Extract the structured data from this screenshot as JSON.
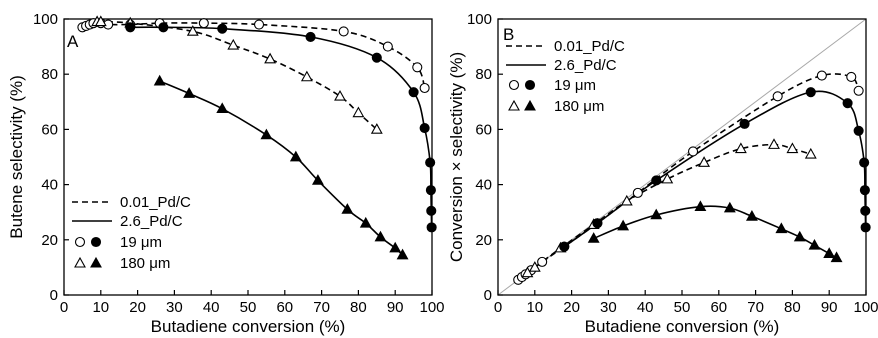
{
  "chart_data": [
    {
      "type": "line",
      "panel_label": "A",
      "xlabel": "Butadiene conversion (%)",
      "ylabel": "Butene selectivity (%)",
      "xlim": [
        0,
        100
      ],
      "ylim": [
        0,
        100
      ],
      "xticks": [
        0,
        10,
        20,
        30,
        40,
        50,
        60,
        70,
        80,
        90,
        100
      ],
      "yticks": [
        0,
        20,
        40,
        60,
        80,
        100
      ],
      "legend_position": "bottom-left",
      "legend": [
        {
          "label": "0.01_Pd/C",
          "style": "dashed-line"
        },
        {
          "label": "2.6_Pd/C",
          "style": "solid-line"
        },
        {
          "label": "19 μm",
          "markers": [
            "open-circle",
            "filled-circle"
          ]
        },
        {
          "label": "180 μm",
          "markers": [
            "open-triangle",
            "filled-triangle"
          ]
        }
      ],
      "series": [
        {
          "name": "0.01_Pd/C 19 μm",
          "marker": "open-circle",
          "line": "dashed",
          "points": [
            [
              5,
              97
            ],
            [
              6,
              97.5
            ],
            [
              7,
              98
            ],
            [
              8,
              98.5
            ],
            [
              10,
              98.5
            ],
            [
              12,
              98
            ],
            [
              18,
              98
            ],
            [
              26,
              98.5
            ],
            [
              38,
              98.5
            ],
            [
              53,
              98
            ],
            [
              76,
              95.5
            ],
            [
              88,
              90
            ],
            [
              96,
              82.5
            ],
            [
              98,
              75
            ]
          ]
        },
        {
          "name": "0.01_Pd/C 180 μm",
          "marker": "open-triangle",
          "line": "dashed",
          "points": [
            [
              9,
              99
            ],
            [
              10,
              99
            ],
            [
              18,
              98.5
            ],
            [
              35,
              95.5
            ],
            [
              46,
              90.5
            ],
            [
              56,
              85.5
            ],
            [
              66,
              79
            ],
            [
              75,
              72
            ],
            [
              80,
              66
            ],
            [
              85,
              60
            ]
          ]
        },
        {
          "name": "2.6_Pd/C 19 μm",
          "marker": "filled-circle",
          "line": "solid",
          "points": [
            [
              18,
              97
            ],
            [
              27,
              97
            ],
            [
              43,
              96.5
            ],
            [
              67,
              93.5
            ],
            [
              85,
              86
            ],
            [
              95,
              73.5
            ],
            [
              98,
              60.5
            ],
            [
              99.5,
              48
            ],
            [
              99.7,
              38
            ],
            [
              99.8,
              30.5
            ],
            [
              99.9,
              24.5
            ]
          ]
        },
        {
          "name": "2.6_Pd/C 180 μm",
          "marker": "filled-triangle",
          "line": "solid",
          "points": [
            [
              26,
              77.5
            ],
            [
              34,
              73
            ],
            [
              43,
              67.5
            ],
            [
              55,
              58
            ],
            [
              63,
              50
            ],
            [
              69,
              41.5
            ],
            [
              77,
              31
            ],
            [
              82,
              26
            ],
            [
              86,
              21
            ],
            [
              90,
              17
            ],
            [
              92,
              14.5
            ]
          ]
        }
      ]
    },
    {
      "type": "line",
      "panel_label": "B",
      "xlabel": "Butadiene conversion (%)",
      "ylabel": "Conversion × selectivity (%)",
      "xlim": [
        0,
        100
      ],
      "ylim": [
        0,
        100
      ],
      "xticks": [
        0,
        10,
        20,
        30,
        40,
        50,
        60,
        70,
        80,
        90,
        100
      ],
      "yticks": [
        0,
        20,
        40,
        60,
        80,
        100
      ],
      "diagonal": true,
      "legend_position": "top-left",
      "legend": [
        {
          "label": "0.01_Pd/C",
          "style": "dashed-line"
        },
        {
          "label": "2.6_Pd/C",
          "style": "solid-line"
        },
        {
          "label": "19 μm",
          "markers": [
            "open-circle",
            "filled-circle"
          ]
        },
        {
          "label": "180 μm",
          "markers": [
            "open-triangle",
            "filled-triangle"
          ]
        }
      ],
      "series": [
        {
          "name": "0.01_Pd/C 19 μm",
          "marker": "open-circle",
          "line": "dashed",
          "points": [
            [
              5.5,
              5.5
            ],
            [
              6.5,
              6.5
            ],
            [
              7.5,
              7.5
            ],
            [
              9,
              9
            ],
            [
              12,
              12
            ],
            [
              18,
              17.5
            ],
            [
              27,
              26
            ],
            [
              38,
              37
            ],
            [
              53,
              52
            ],
            [
              76,
              72
            ],
            [
              88,
              79.5
            ],
            [
              96,
              79
            ],
            [
              98,
              74
            ]
          ]
        },
        {
          "name": "0.01_Pd/C 180 μm",
          "marker": "open-triangle",
          "line": "dashed",
          "points": [
            [
              8,
              8
            ],
            [
              10,
              10
            ],
            [
              17,
              17
            ],
            [
              26,
              25.5
            ],
            [
              35,
              34
            ],
            [
              46,
              42
            ],
            [
              56,
              48
            ],
            [
              66,
              53
            ],
            [
              75,
              54.5
            ],
            [
              80,
              53
            ],
            [
              85,
              51
            ]
          ]
        },
        {
          "name": "2.6_Pd/C 19 μm",
          "marker": "filled-circle",
          "line": "solid",
          "points": [
            [
              18,
              17.5
            ],
            [
              27,
              26
            ],
            [
              43,
              41.5
            ],
            [
              67,
              62
            ],
            [
              85,
              73.5
            ],
            [
              95,
              69.5
            ],
            [
              98,
              59.5
            ],
            [
              99.5,
              48
            ],
            [
              99.7,
              38
            ],
            [
              99.8,
              30.5
            ],
            [
              99.9,
              24.5
            ]
          ]
        },
        {
          "name": "2.6_Pd/C 180 μm",
          "marker": "filled-triangle",
          "line": "solid",
          "points": [
            [
              26,
              20.5
            ],
            [
              34,
              25
            ],
            [
              43,
              29
            ],
            [
              55,
              32
            ],
            [
              63,
              31.5
            ],
            [
              69,
              28.5
            ],
            [
              77,
              24
            ],
            [
              82,
              21
            ],
            [
              86,
              18
            ],
            [
              90,
              15
            ],
            [
              92,
              13.5
            ]
          ]
        }
      ]
    }
  ]
}
